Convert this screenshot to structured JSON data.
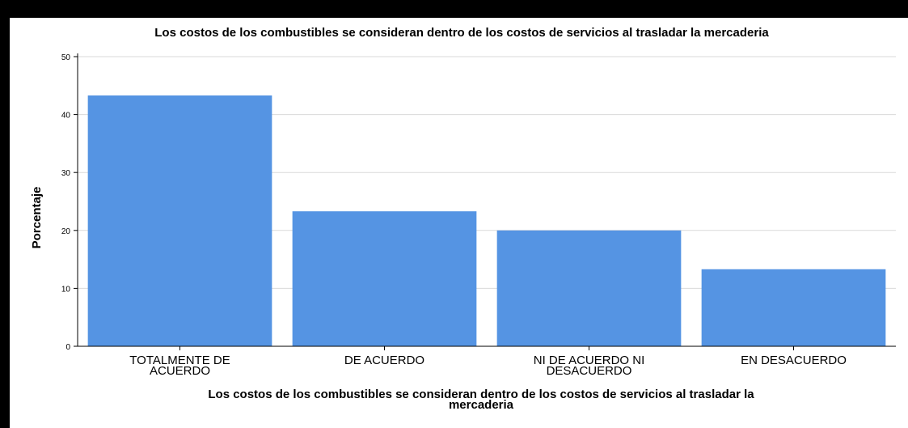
{
  "chart_data": {
    "type": "bar",
    "title": "Los costos de los combustibles se consideran dentro de los costos de servicios al trasladar la mercaderia",
    "xlabel_lines": [
      "Los costos de los combustibles se consideran dentro de los costos de servicios al trasladar la",
      "mercaderia"
    ],
    "ylabel": "Porcentaje",
    "categories": [
      [
        "TOTALMENTE DE",
        "ACUERDO"
      ],
      [
        "DE ACUERDO"
      ],
      [
        "NI DE ACUERDO NI",
        "DESACUERDO"
      ],
      [
        "EN DESACUERDO"
      ]
    ],
    "values": [
      43.3,
      23.3,
      20.0,
      13.3
    ],
    "ylim": [
      0,
      50
    ],
    "yticks": [
      0,
      10,
      20,
      30,
      40,
      50
    ],
    "grid": true,
    "bar_color": "#5594e3",
    "grid_color": "#d9d9d9"
  }
}
